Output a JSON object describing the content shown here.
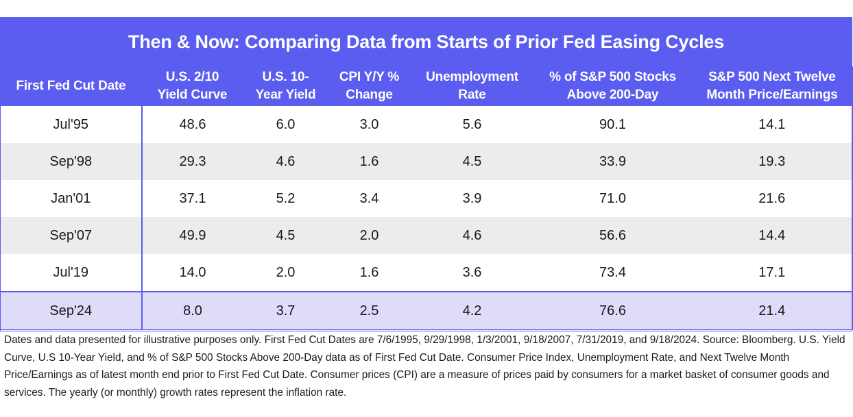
{
  "chart_data": {
    "type": "table",
    "title": "Then & Now: Comparing Data from Starts of Prior Fed Easing Cycles",
    "columns": [
      {
        "line1": "First Fed Cut Date",
        "line2": ""
      },
      {
        "line1": "U.S. 2/10",
        "line2": "Yield Curve"
      },
      {
        "line1": "U.S. 10-",
        "line2": "Year Yield"
      },
      {
        "line1": "CPI Y/Y %",
        "line2": "Change"
      },
      {
        "line1": "Unemployment",
        "line2": "Rate"
      },
      {
        "line1": "% of S&P 500 Stocks",
        "line2": "Above 200-Day"
      },
      {
        "line1": "S&P 500 Next Twelve",
        "line2": "Month Price/Earnings"
      }
    ],
    "rows": [
      [
        "Jul'95",
        "48.6",
        "6.0",
        "3.0",
        "5.6",
        "90.1",
        "14.1"
      ],
      [
        "Sep'98",
        "29.3",
        "4.6",
        "1.6",
        "4.5",
        "33.9",
        "19.3"
      ],
      [
        "Jan'01",
        "37.1",
        "5.2",
        "3.4",
        "3.9",
        "71.0",
        "21.6"
      ],
      [
        "Sep'07",
        "49.9",
        "4.5",
        "2.0",
        "4.6",
        "56.6",
        "14.4"
      ],
      [
        "Jul'19",
        "14.0",
        "2.0",
        "1.6",
        "3.6",
        "73.4",
        "17.1"
      ],
      [
        "Sep'24",
        "8.0",
        "3.7",
        "2.5",
        "4.2",
        "76.6",
        "21.4"
      ]
    ],
    "highlighted_row": "Sep'24",
    "colors": {
      "header": "#5b5cf0",
      "alt_row": "#ececec",
      "highlight_row": "#dedcf8"
    }
  },
  "footnote": "Dates and data presented for illustrative purposes only. First Fed Cut Dates are 7/6/1995, 9/29/1998, 1/3/2001, 9/18/2007, 7/31/2019, and 9/18/2024. Source: Bloomberg. U.S. Yield Curve, U.S 10-Year Yield, and % of S&P 500 Stocks Above 200-Day data as of First Fed Cut Date. Consumer Price Index, Unemployment Rate, and Next Twelve Month Price/Earnings as of latest month end prior to First Fed Cut Date. Consumer prices (CPI) are a measure of prices paid by consumers for a market basket of consumer goods and services. The yearly (or monthly) growth rates represent the inflation rate."
}
